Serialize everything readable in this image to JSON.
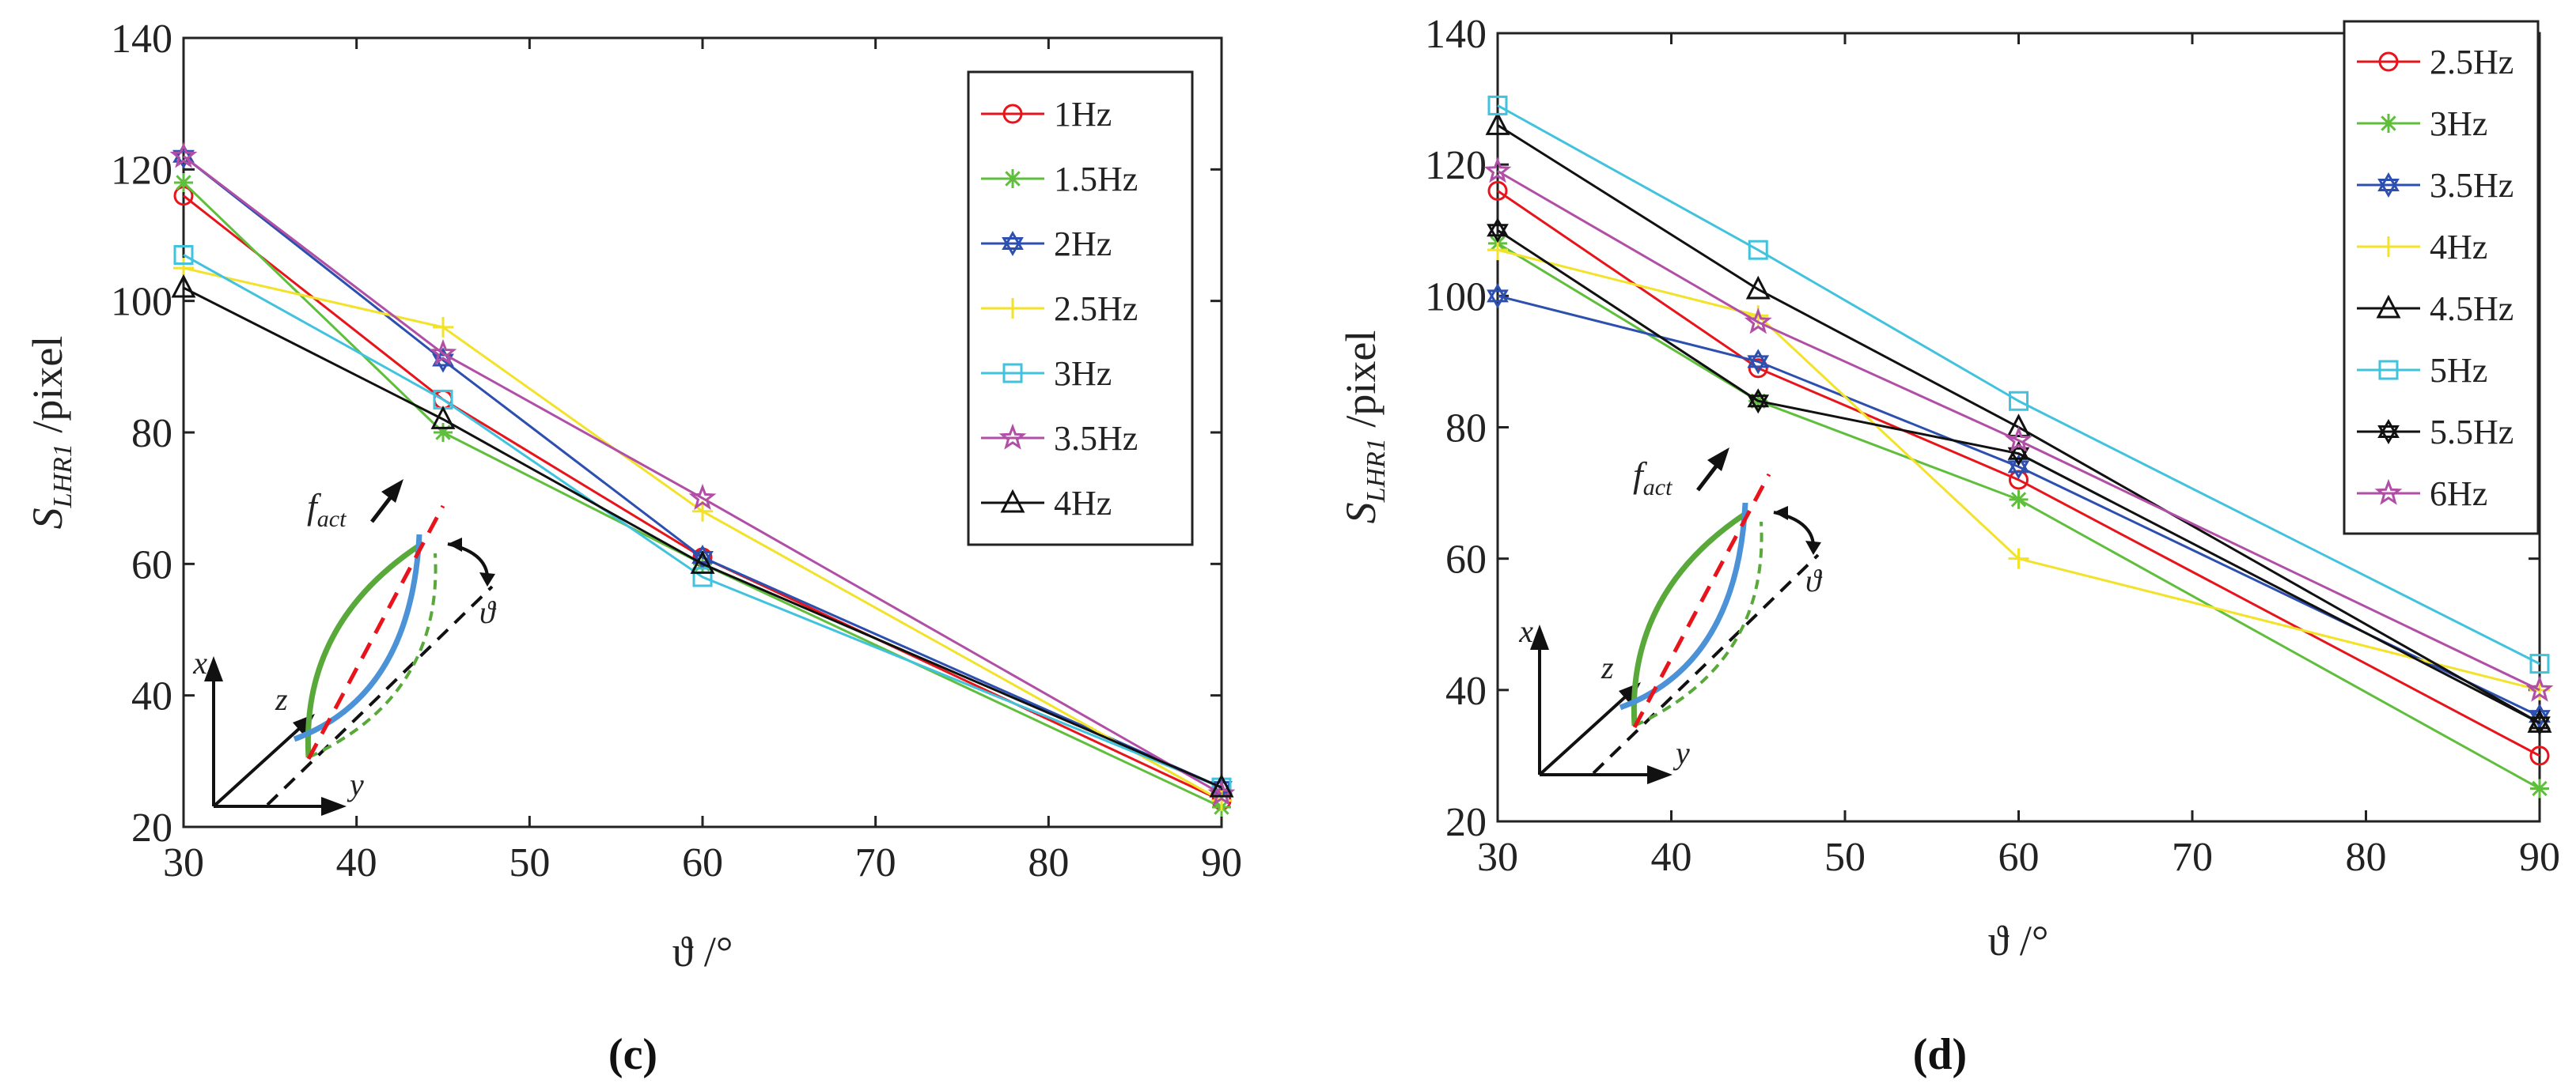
{
  "chart_data": [
    {
      "type": "line",
      "panel": "(c)",
      "xlabel": "ϑ /°",
      "ylabel_main": "S",
      "ylabel_sub": "LHR1",
      "ylabel_suffix": " /pixel",
      "xlim": [
        30,
        90
      ],
      "ylim": [
        20,
        140
      ],
      "xticks": [
        30,
        40,
        50,
        60,
        70,
        80,
        90
      ],
      "yticks": [
        20,
        40,
        60,
        80,
        100,
        120,
        140
      ],
      "x": [
        30,
        45,
        60,
        90
      ],
      "legend_position": "top-right",
      "series": [
        {
          "name": "1Hz",
          "color": "#e8141b",
          "marker": "circle",
          "values": [
            116,
            85,
            61,
            24
          ]
        },
        {
          "name": "1.5Hz",
          "color": "#5fbf3c",
          "marker": "asterisk",
          "values": [
            118,
            80,
            60,
            23
          ]
        },
        {
          "name": "2Hz",
          "color": "#2c4fb0",
          "marker": "hexagram",
          "values": [
            122,
            91,
            61,
            26
          ]
        },
        {
          "name": "2.5Hz",
          "color": "#f2e22a",
          "marker": "plus",
          "values": [
            105,
            96,
            68,
            24
          ]
        },
        {
          "name": "3Hz",
          "color": "#41c2dd",
          "marker": "square",
          "values": [
            107,
            85,
            58,
            26
          ]
        },
        {
          "name": "3.5Hz",
          "color": "#b14ea5",
          "marker": "star",
          "values": [
            122,
            92,
            70,
            25
          ]
        },
        {
          "name": "4Hz",
          "color": "#111111",
          "marker": "triangle",
          "values": [
            102,
            82,
            60,
            26
          ]
        }
      ]
    },
    {
      "type": "line",
      "panel": "(d)",
      "xlabel": "ϑ /°",
      "ylabel_main": "S",
      "ylabel_sub": "LHR1",
      "ylabel_suffix": " /pixel",
      "xlim": [
        30,
        90
      ],
      "ylim": [
        20,
        140
      ],
      "xticks": [
        30,
        40,
        50,
        60,
        70,
        80,
        90
      ],
      "yticks": [
        20,
        40,
        60,
        80,
        100,
        120,
        140
      ],
      "x": [
        30,
        45,
        60,
        90
      ],
      "legend_position": "top-right",
      "series": [
        {
          "name": "2.5Hz",
          "color": "#e8141b",
          "marker": "circle",
          "values": [
            116,
            89,
            72,
            30
          ]
        },
        {
          "name": "3Hz",
          "color": "#5fbf3c",
          "marker": "asterisk",
          "values": [
            108,
            84,
            69,
            25
          ]
        },
        {
          "name": "3.5Hz",
          "color": "#2c4fb0",
          "marker": "hexagram",
          "values": [
            100,
            90,
            74,
            36
          ]
        },
        {
          "name": "4Hz",
          "color": "#f2e22a",
          "marker": "plus",
          "values": [
            107,
            97,
            60,
            40
          ]
        },
        {
          "name": "4.5Hz",
          "color": "#111111",
          "marker": "triangle",
          "values": [
            126,
            101,
            80,
            35
          ]
        },
        {
          "name": "5Hz",
          "color": "#41c2dd",
          "marker": "square",
          "values": [
            129,
            107,
            84,
            44
          ]
        },
        {
          "name": "5.5Hz",
          "color": "#111111",
          "marker": "hexagram",
          "values": [
            110,
            84,
            76,
            35
          ]
        },
        {
          "name": "6Hz",
          "color": "#b14ea5",
          "marker": "star",
          "values": [
            119,
            96,
            78,
            40
          ]
        }
      ]
    }
  ],
  "inset_labels": {
    "force_main": "f",
    "force_sub": "act",
    "angle": "ϑ",
    "axis_x": "x",
    "axis_y": "y",
    "axis_z": "z"
  },
  "colors": {
    "inset_green": "#58a83a",
    "inset_blue": "#4b93d6",
    "inset_red": "#e8141b"
  }
}
